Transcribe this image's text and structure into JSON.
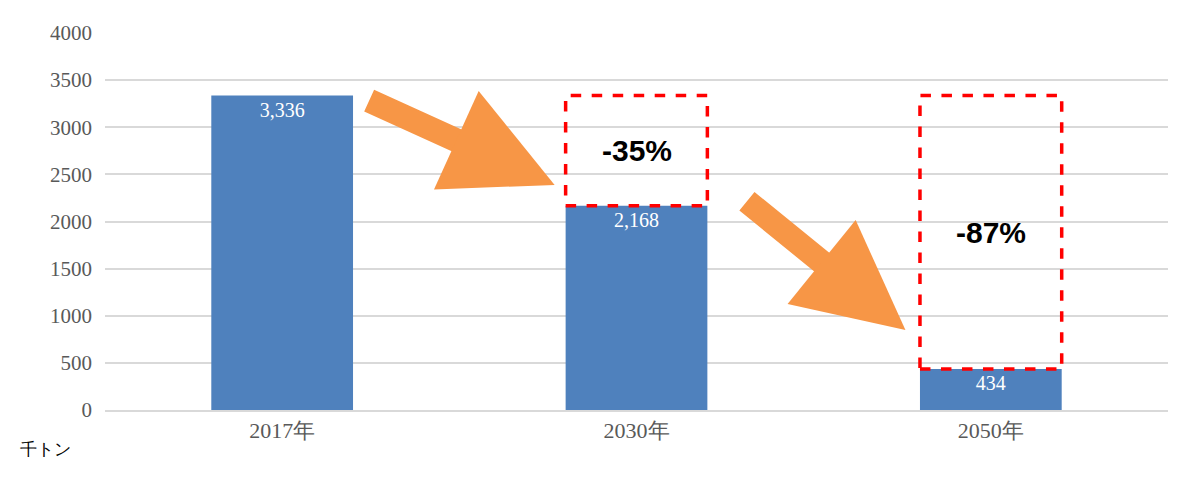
{
  "chart_data": {
    "type": "bar",
    "categories": [
      "2017年",
      "2030年",
      "2050年"
    ],
    "values": [
      3336,
      2168,
      434
    ],
    "value_labels": [
      "3,336",
      "2,168",
      "434"
    ],
    "data_labels": true,
    "color": "#4f81bd",
    "ylim": [
      0,
      4000
    ],
    "yticks": [
      0,
      500,
      1000,
      1500,
      2000,
      2500,
      3000,
      3500,
      4000
    ],
    "grid": true,
    "y_label": "千トン",
    "annotations": [
      {
        "category": "2030年",
        "text": "-35%"
      },
      {
        "category": "2050年",
        "text": "-87%"
      }
    ]
  }
}
